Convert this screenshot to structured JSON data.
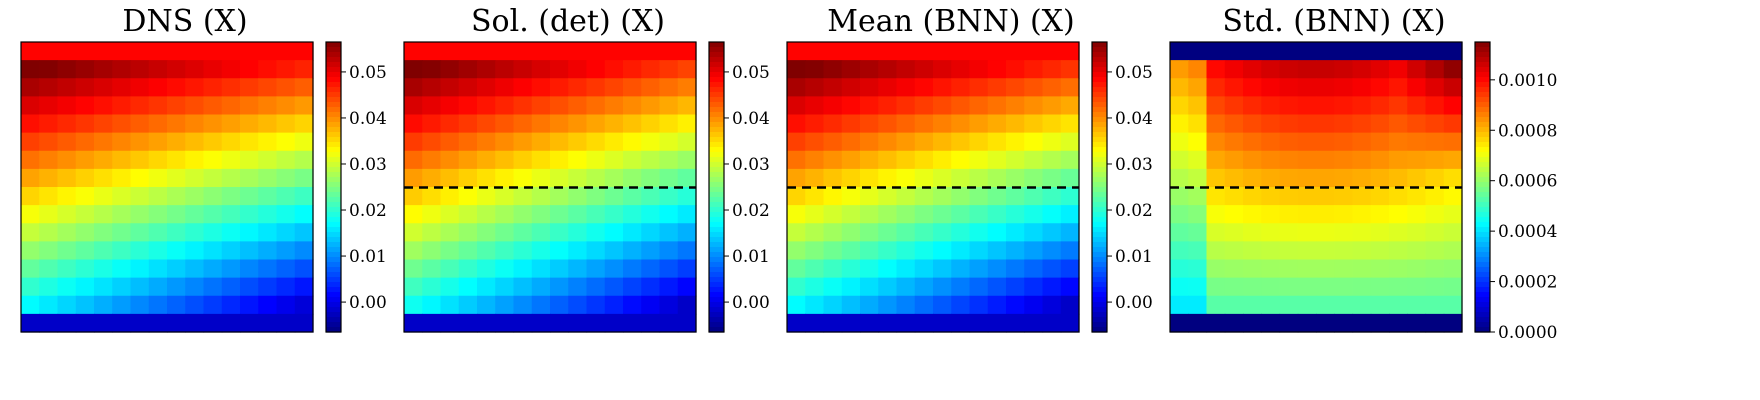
{
  "chart_data": [
    {
      "type": "heatmap",
      "title": "DNS (X)",
      "rows": 16,
      "cols": 16,
      "boundary_top": 0.0485,
      "boundary_bottom": -0.002,
      "corner_bottom_right": -0.003,
      "colorbar": {
        "min": -0.0065,
        "max": 0.0565,
        "ticks": [
          "0.00",
          "0.01",
          "0.02",
          "0.03",
          "0.04",
          "0.05"
        ],
        "tick_values": [
          0.0,
          0.01,
          0.02,
          0.03,
          0.04,
          0.05
        ]
      },
      "dashed_line_row": null
    },
    {
      "type": "heatmap",
      "title": "Sol. (det) (X)",
      "rows": 16,
      "cols": 16,
      "boundary_top": 0.0485,
      "boundary_bottom": -0.002,
      "corner_bottom_right": -0.003,
      "colorbar": {
        "min": -0.0065,
        "max": 0.0565,
        "ticks": [
          "0.00",
          "0.01",
          "0.02",
          "0.03",
          "0.04",
          "0.05"
        ],
        "tick_values": [
          0.0,
          0.01,
          0.02,
          0.03,
          0.04,
          0.05
        ]
      },
      "dashed_line_row": 7.5
    },
    {
      "type": "heatmap",
      "title": "Mean (BNN) (X)",
      "rows": 16,
      "cols": 16,
      "boundary_top": 0.0485,
      "boundary_bottom": -0.002,
      "corner_bottom_right": -0.003,
      "colorbar": {
        "min": -0.0065,
        "max": 0.0565,
        "ticks": [
          "0.00",
          "0.01",
          "0.02",
          "0.03",
          "0.04",
          "0.05"
        ],
        "tick_values": [
          0.0,
          0.01,
          0.02,
          0.03,
          0.04,
          0.05
        ]
      },
      "dashed_line_row": 7.5
    },
    {
      "type": "heatmap",
      "title": "Std. (BNN) (X)",
      "rows": 16,
      "cols": 16,
      "boundary_top": 0.0,
      "boundary_bottom": 0.0,
      "std_top": 0.00085,
      "std_bottom": 0.00055,
      "std_right_peak": 0.00112,
      "colorbar": {
        "min": 0.0,
        "max": 0.00115,
        "ticks": [
          "0.0000",
          "0.0002",
          "0.0004",
          "0.0006",
          "0.0008",
          "0.0010"
        ],
        "tick_values": [
          0.0,
          0.0002,
          0.0004,
          0.0006,
          0.0008,
          0.001
        ]
      },
      "dashed_line_row": 7.5
    }
  ]
}
